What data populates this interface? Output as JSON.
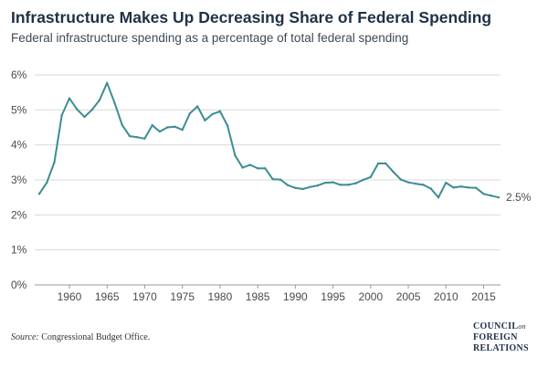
{
  "chart_data": {
    "type": "line",
    "title": "Infrastructure Makes Up Decreasing Share of Federal Spending",
    "subtitle": "Federal infrastructure spending as a percentage of total federal spending",
    "xlabel": "",
    "ylabel": "",
    "xlim": [
      1956,
      2017
    ],
    "ylim": [
      0,
      6
    ],
    "grid": true,
    "legend": "none",
    "x_ticks": [
      1960,
      1965,
      1970,
      1975,
      1980,
      1985,
      1990,
      1995,
      2000,
      2005,
      2010,
      2015
    ],
    "x_tick_labels": [
      "1960",
      "1965",
      "1970",
      "1975",
      "1980",
      "1985",
      "1990",
      "1995",
      "2000",
      "2005",
      "2010",
      "2015"
    ],
    "y_ticks": [
      0,
      1,
      2,
      3,
      4,
      5,
      6
    ],
    "y_tick_labels": [
      "0%",
      "1%",
      "2%",
      "3%",
      "4%",
      "5%",
      "6%"
    ],
    "end_label": "2.5%",
    "color": "#3c8d93",
    "series": [
      {
        "x": [
          1956,
          1957,
          1958,
          1959,
          1960,
          1961,
          1962,
          1963,
          1964,
          1965,
          1966,
          1967,
          1968,
          1969,
          1970,
          1971,
          1972,
          1973,
          1974,
          1975,
          1976,
          1977,
          1978,
          1979,
          1980,
          1981,
          1982,
          1983,
          1984,
          1985,
          1986,
          1987,
          1988,
          1989,
          1990,
          1991,
          1992,
          1993,
          1994,
          1995,
          1996,
          1997,
          1998,
          1999,
          2000,
          2001,
          2002,
          2003,
          2004,
          2005,
          2006,
          2007,
          2008,
          2009,
          2010,
          2011,
          2012,
          2013,
          2014,
          2015,
          2016,
          2017
        ],
        "values": [
          2.6,
          2.92,
          3.5,
          4.85,
          5.33,
          5.02,
          4.8,
          5.0,
          5.28,
          5.77,
          5.2,
          4.57,
          4.25,
          4.22,
          4.18,
          4.56,
          4.38,
          4.5,
          4.52,
          4.43,
          4.9,
          5.1,
          4.7,
          4.88,
          4.96,
          4.55,
          3.7,
          3.35,
          3.43,
          3.33,
          3.33,
          3.02,
          3.01,
          2.85,
          2.77,
          2.74,
          2.8,
          2.84,
          2.92,
          2.93,
          2.86,
          2.86,
          2.9,
          3.0,
          3.08,
          3.47,
          3.47,
          3.23,
          3.01,
          2.93,
          2.89,
          2.86,
          2.75,
          2.5,
          2.92,
          2.78,
          2.81,
          2.78,
          2.77,
          2.6,
          2.55,
          2.5
        ]
      }
    ]
  },
  "source": {
    "label": "Source:",
    "text": "Congressional Budget Office."
  },
  "logo": {
    "line1": "COUNCIL",
    "line1_small": "on",
    "line2": "FOREIGN",
    "line3": "RELATIONS"
  }
}
